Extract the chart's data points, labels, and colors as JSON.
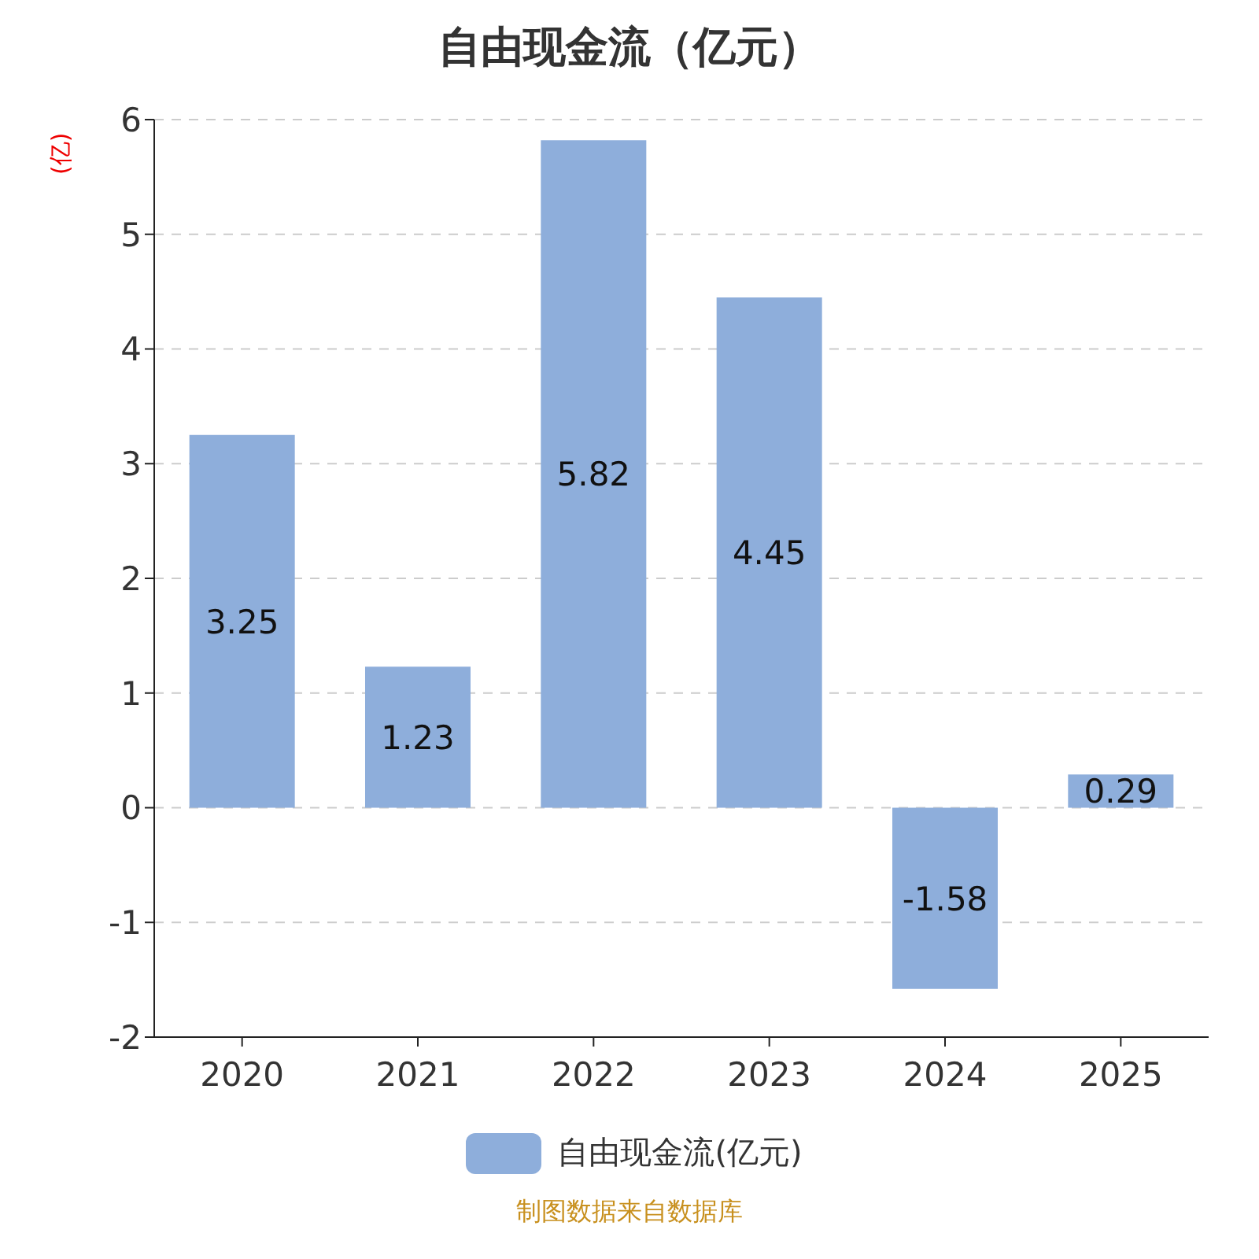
{
  "chart_data": {
    "type": "bar",
    "title": "自由现金流（亿元）",
    "ylabel": "(亿)",
    "categories": [
      "2020",
      "2021",
      "2022",
      "2023",
      "2024",
      "2025"
    ],
    "series": [
      {
        "name": "自由现金流(亿元)",
        "color": "#8eaedb",
        "values": [
          3.25,
          1.23,
          5.82,
          4.45,
          -1.58,
          0.29
        ]
      }
    ],
    "ylim": [
      -2,
      6
    ],
    "yticks": [
      -2,
      -1,
      0,
      1,
      2,
      3,
      4,
      5,
      6
    ],
    "grid": "y",
    "legend": "bottom",
    "data_labels": true,
    "annotations": [
      "制图数据来自数据库"
    ]
  }
}
